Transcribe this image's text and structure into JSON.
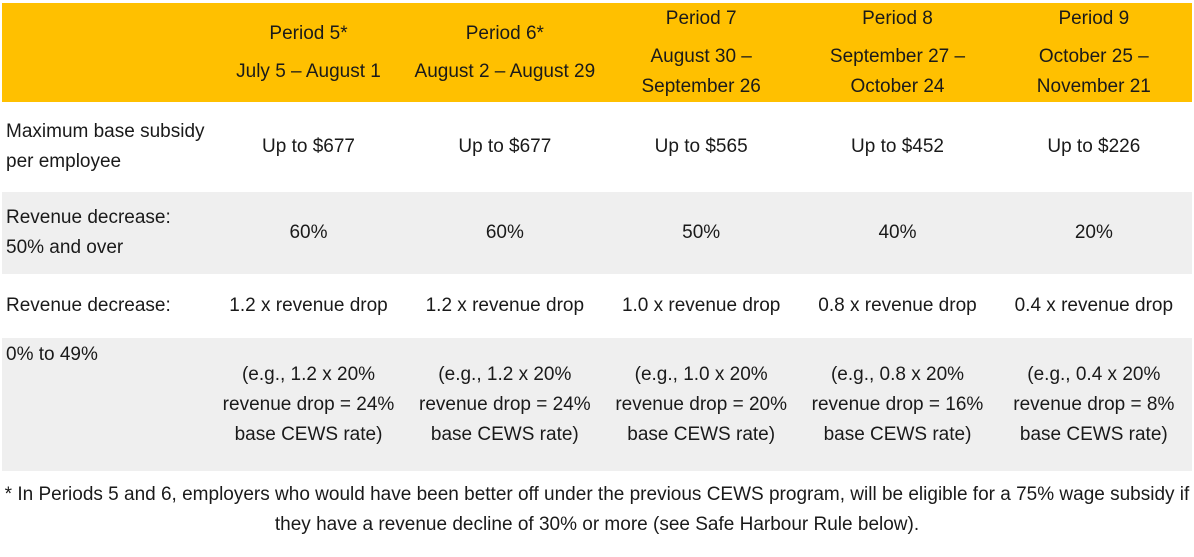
{
  "periods": [
    {
      "name": "Period 5*",
      "dates": "July 5 – August 1",
      "max_subsidy": "Up to $677",
      "rate_50_over": "60%",
      "rate_formula": "1.2 x revenue drop",
      "example": "(e.g., 1.2 x 20% revenue drop = 24% base CEWS rate)"
    },
    {
      "name": "Period 6*",
      "dates": "August 2 – August 29",
      "max_subsidy": "Up to $677",
      "rate_50_over": "60%",
      "rate_formula": "1.2 x revenue drop",
      "example": "(e.g., 1.2 x 20% revenue drop = 24% base CEWS rate)"
    },
    {
      "name": "Period 7",
      "dates": "August 30 – September 26",
      "max_subsidy": "Up to $565",
      "rate_50_over": "50%",
      "rate_formula": "1.0 x revenue drop",
      "example": "(e.g., 1.0 x 20% revenue drop = 20% base CEWS rate)"
    },
    {
      "name": "Period 8",
      "dates": "September 27 – October 24",
      "max_subsidy": "Up to $452",
      "rate_50_over": "40%",
      "rate_formula": "0.8 x revenue drop",
      "example": "(e.g., 0.8 x 20% revenue drop = 16% base CEWS rate)"
    },
    {
      "name": "Period 9",
      "dates": "October 25 – November 21",
      "max_subsidy": "Up to $226",
      "rate_50_over": "20%",
      "rate_formula": "0.4 x revenue drop",
      "example": "(e.g., 0.4 x 20% revenue drop = 8% base CEWS rate)"
    }
  ],
  "row_labels": {
    "max_subsidy": "Maximum base subsidy per employee",
    "decrease_50": "Revenue decrease: 50% and over",
    "decrease_low_a": "Revenue decrease:",
    "decrease_low_b": "0% to 49%"
  },
  "footnote": "* In Periods 5 and 6, employers who would have been better off under the previous CEWS program, will be eligible for a 75% wage subsidy if they have a revenue decline of 30% or more (see Safe Harbour Rule below).",
  "colors": {
    "header_bg": "#ffc000",
    "band_bg": "#efefef"
  }
}
